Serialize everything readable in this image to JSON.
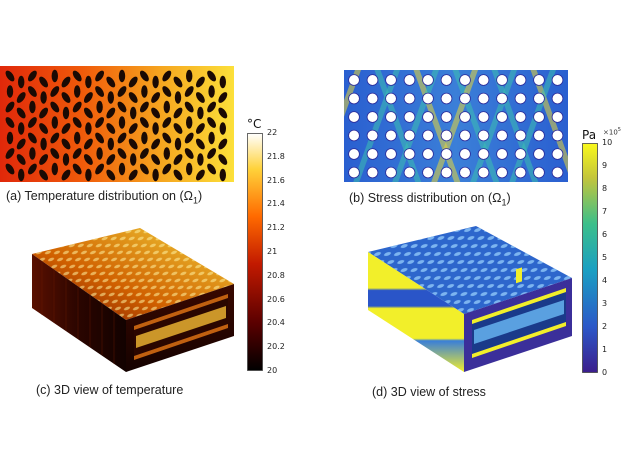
{
  "captions": {
    "a": "(a) Temperature distribution on (Ω",
    "a_sub": "1",
    "b": "(b) Stress distribution on (Ω",
    "b_sub": "1",
    "c": "(c) 3D view of temperature",
    "d": "(d) 3D view of stress"
  },
  "temperature_colorbar": {
    "unit": "°C",
    "min": 20,
    "max": 22,
    "ticks": [
      "22",
      "21.8",
      "21.6",
      "21.4",
      "21.2",
      "21",
      "20.8",
      "20.6",
      "20.4",
      "20.2",
      "20"
    ],
    "colors": [
      "#000000",
      "#5a0000",
      "#c21a00",
      "#ff6a00",
      "#ffd23a",
      "#ffffff"
    ]
  },
  "stress_colorbar": {
    "unit": "Pa",
    "multiplier_base": "×10",
    "multiplier_exp": "5",
    "min": 0,
    "max": 10,
    "ticks": [
      "10",
      "9",
      "8",
      "7",
      "6",
      "5",
      "4",
      "3",
      "2",
      "1",
      "0"
    ],
    "colors": [
      "#3b1e8c",
      "#2c58c8",
      "#1aa0c2",
      "#3cbf8a",
      "#c3c53b",
      "#f9f91c"
    ]
  }
}
